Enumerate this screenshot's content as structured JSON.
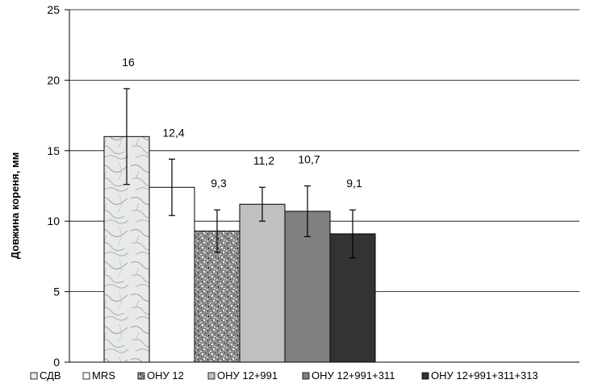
{
  "chart_data": {
    "type": "bar",
    "title": "",
    "xlabel": "",
    "ylabel": "Довжина кореня, мм",
    "ylim": [
      0,
      25
    ],
    "yticks": [
      "0",
      "5",
      "10",
      "15",
      "20",
      "25"
    ],
    "grid": true,
    "legend_position": "bottom",
    "series": [
      {
        "name": "СДВ",
        "value": 16,
        "label": "16",
        "error": 3.4,
        "fill": "marble",
        "color": "#e8eaea"
      },
      {
        "name": "MRS",
        "value": 12.4,
        "label": "12,4",
        "error": 2.0,
        "fill": "solid",
        "color": "#ffffff"
      },
      {
        "name": "ОНУ 12",
        "value": 9.3,
        "label": "9,3",
        "error": 1.5,
        "fill": "speckle",
        "color": "#8a8a8a"
      },
      {
        "name": "ОНУ 12+991",
        "value": 11.2,
        "label": "11,2",
        "error": 1.2,
        "fill": "solid",
        "color": "#c0c0c0"
      },
      {
        "name": "ОНУ 12+991+311",
        "value": 10.7,
        "label": "10,7",
        "error": 1.8,
        "fill": "solid",
        "color": "#808080"
      },
      {
        "name": "ОНУ 12+991+311+313",
        "value": 9.1,
        "label": "9,1",
        "error": 1.7,
        "fill": "solid",
        "color": "#333333"
      }
    ]
  }
}
